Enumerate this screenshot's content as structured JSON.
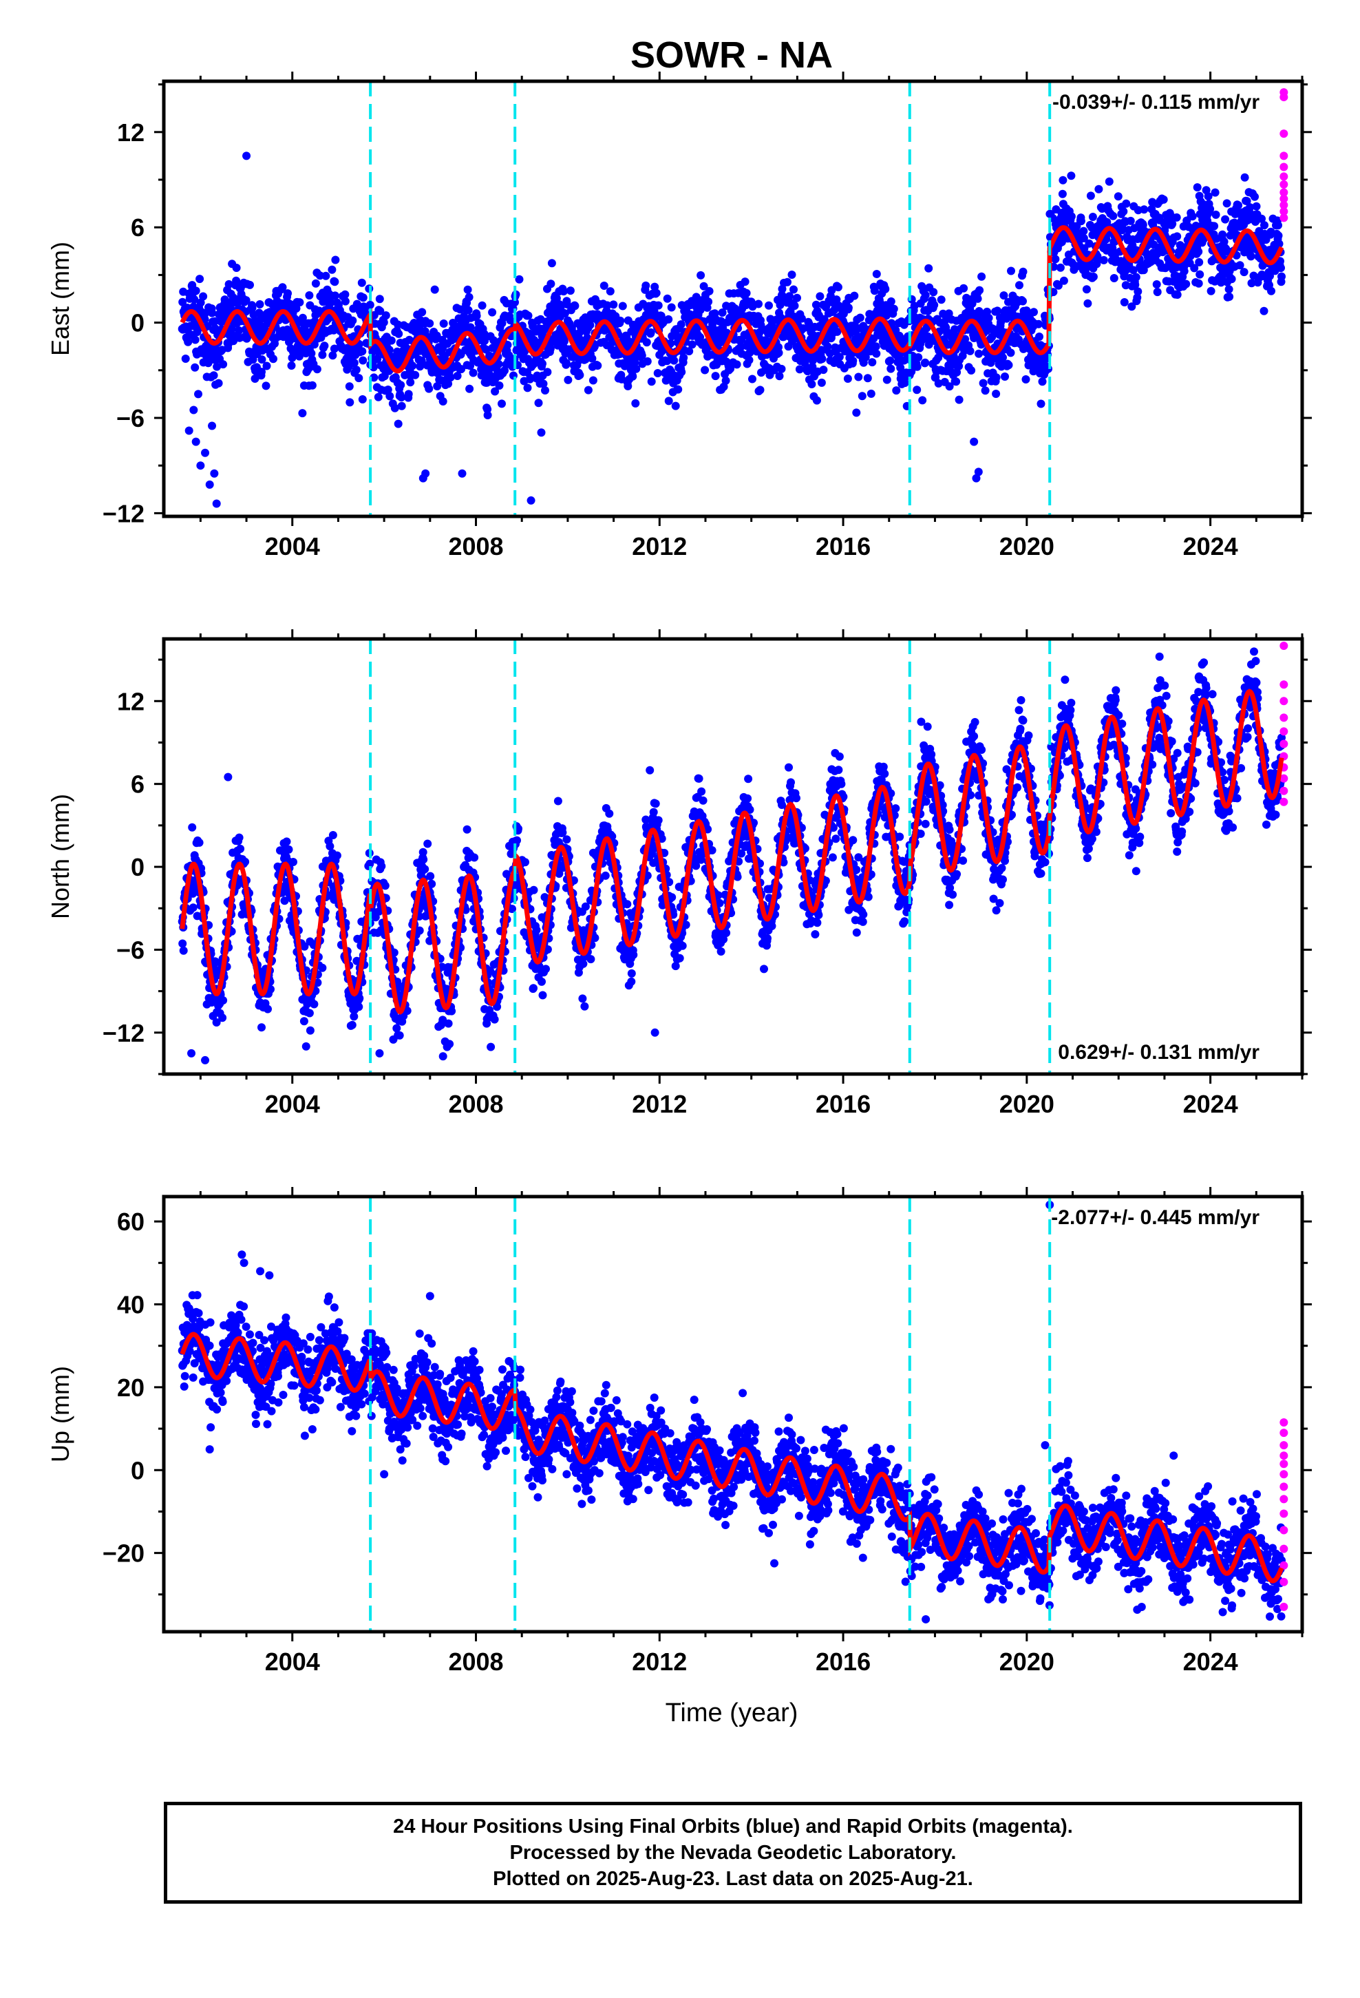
{
  "title": "SOWR - NA",
  "xlabel": "Time (year)",
  "footer": {
    "line1": "24 Hour Positions Using Final Orbits (blue) and Rapid Orbits (magenta).",
    "line2": "Processed by the Nevada Geodetic Laboratory.",
    "line3": "Plotted on 2025-Aug-23. Last data on 2025-Aug-21."
  },
  "colors": {
    "final": "#0000ff",
    "rapid": "#ff00ff",
    "model": "#ff0000",
    "events": "#00e5ee"
  },
  "chart_data": [
    {
      "type": "scatter",
      "component": "East",
      "ylabel": "East (mm)",
      "rate": "-0.039+/- 0.115 mm/yr",
      "rate_position": "top-right",
      "xlim": [
        2001.2,
        2026.0
      ],
      "ylim": [
        -12.2,
        15.2
      ],
      "xticks": [
        2004,
        2008,
        2012,
        2016,
        2020,
        2024
      ],
      "yticks": [
        -12,
        -6,
        0,
        6,
        12
      ],
      "event_lines": [
        2005.7,
        2008.85,
        2017.45,
        2020.5
      ],
      "model": {
        "start": 2001.6,
        "end": 2025.55,
        "segments": [
          {
            "from": 2001.6,
            "to": 2005.7,
            "offset": -0.3,
            "rate": 0.0,
            "amp": 1.0,
            "phase": 0.55
          },
          {
            "from": 2005.7,
            "to": 2008.85,
            "offset": -2.2,
            "rate": 0.25,
            "amp": 1.0,
            "phase": 0.55
          },
          {
            "from": 2008.85,
            "to": 2017.45,
            "offset": -1.0,
            "rate": 0.03,
            "amp": 1.0,
            "phase": 0.55
          },
          {
            "from": 2017.45,
            "to": 2020.5,
            "offset": -0.9,
            "rate": 0.0,
            "amp": 1.0,
            "phase": 0.55
          },
          {
            "from": 2020.5,
            "to": 2025.55,
            "offset": 5.0,
            "rate": -0.05,
            "amp": 1.0,
            "phase": 0.55
          }
        ]
      },
      "final_points": {
        "start": 2001.6,
        "end": 2025.55,
        "count": 3200,
        "noise": 1.3
      },
      "outliers": [
        {
          "x": 2001.9,
          "y": -7.5
        },
        {
          "x": 2002.0,
          "y": -9.0
        },
        {
          "x": 2002.1,
          "y": -8.2
        },
        {
          "x": 2001.85,
          "y": -5.5
        },
        {
          "x": 2002.2,
          "y": -10.2
        },
        {
          "x": 2002.3,
          "y": -9.5
        },
        {
          "x": 2001.75,
          "y": -6.8
        },
        {
          "x": 2002.35,
          "y": -11.4
        },
        {
          "x": 2001.95,
          "y": -4.5
        },
        {
          "x": 2002.25,
          "y": -6.5
        },
        {
          "x": 2003.0,
          "y": 10.5
        },
        {
          "x": 2006.9,
          "y": -9.5
        },
        {
          "x": 2006.85,
          "y": -9.8
        },
        {
          "x": 2007.7,
          "y": -9.5
        },
        {
          "x": 2009.2,
          "y": -11.2
        },
        {
          "x": 2018.9,
          "y": -9.8
        },
        {
          "x": 2018.85,
          "y": -7.5
        },
        {
          "x": 2018.95,
          "y": -9.4
        }
      ],
      "rapid_points": [
        {
          "x": 2025.6,
          "y": 14.5
        },
        {
          "x": 2025.6,
          "y": 14.2
        },
        {
          "x": 2025.6,
          "y": 11.9
        },
        {
          "x": 2025.6,
          "y": 10.5
        },
        {
          "x": 2025.6,
          "y": 9.8
        },
        {
          "x": 2025.6,
          "y": 9.2
        },
        {
          "x": 2025.6,
          "y": 8.7
        },
        {
          "x": 2025.6,
          "y": 8.2
        },
        {
          "x": 2025.6,
          "y": 7.8
        },
        {
          "x": 2025.6,
          "y": 7.4
        },
        {
          "x": 2025.6,
          "y": 7.0
        },
        {
          "x": 2025.6,
          "y": 6.6
        }
      ]
    },
    {
      "type": "scatter",
      "component": "North",
      "ylabel": "North (mm)",
      "rate": "0.629+/- 0.131 mm/yr",
      "rate_position": "bottom-right",
      "xlim": [
        2001.2,
        2026.0
      ],
      "ylim": [
        -15.0,
        16.5
      ],
      "xticks": [
        2004,
        2008,
        2012,
        2016,
        2020,
        2024
      ],
      "yticks": [
        -12,
        -6,
        0,
        6,
        12
      ],
      "event_lines": [
        2005.7,
        2008.85,
        2017.45,
        2020.5
      ],
      "model": {
        "start": 2001.6,
        "end": 2025.55,
        "segments": [
          {
            "from": 2001.6,
            "to": 2005.7,
            "offset": -4.5,
            "rate": 0.0,
            "amp": 4.7,
            "phase": 0.6
          },
          {
            "from": 2005.7,
            "to": 2008.85,
            "offset": -6.0,
            "rate": 0.3,
            "amp": 4.7,
            "phase": 0.6
          },
          {
            "from": 2008.85,
            "to": 2017.45,
            "offset": -3.2,
            "rate": 0.62,
            "amp": 4.0,
            "phase": 0.6
          },
          {
            "from": 2017.45,
            "to": 2020.5,
            "offset": 3.2,
            "rate": 0.62,
            "amp": 4.0,
            "phase": 0.6
          },
          {
            "from": 2020.5,
            "to": 2025.55,
            "offset": 6.0,
            "rate": 0.62,
            "amp": 4.0,
            "phase": 0.6
          }
        ]
      },
      "final_points": {
        "start": 2001.6,
        "end": 2025.55,
        "count": 3200,
        "noise": 1.3
      },
      "outliers": [
        {
          "x": 2001.8,
          "y": -13.5
        },
        {
          "x": 2002.1,
          "y": -14.0
        },
        {
          "x": 2004.3,
          "y": -13.0
        },
        {
          "x": 2005.9,
          "y": -13.5
        },
        {
          "x": 2006.2,
          "y": -12.5
        },
        {
          "x": 2011.9,
          "y": -12.0
        },
        {
          "x": 2002.6,
          "y": 6.5
        },
        {
          "x": 2017.7,
          "y": 10.5
        }
      ],
      "rapid_points": [
        {
          "x": 2025.6,
          "y": 16.0
        },
        {
          "x": 2025.6,
          "y": 13.2
        },
        {
          "x": 2025.6,
          "y": 12.0
        },
        {
          "x": 2025.6,
          "y": 10.8
        },
        {
          "x": 2025.6,
          "y": 9.8
        },
        {
          "x": 2025.6,
          "y": 8.9
        },
        {
          "x": 2025.6,
          "y": 8.0
        },
        {
          "x": 2025.6,
          "y": 7.2
        },
        {
          "x": 2025.6,
          "y": 6.4
        },
        {
          "x": 2025.6,
          "y": 5.5
        },
        {
          "x": 2025.6,
          "y": 4.7
        }
      ]
    },
    {
      "type": "scatter",
      "component": "Up",
      "ylabel": "Up (mm)",
      "rate": "-2.077+/- 0.445 mm/yr",
      "rate_position": "top-right",
      "xlim": [
        2001.2,
        2026.0
      ],
      "ylim": [
        -39.0,
        66.0
      ],
      "xticks": [
        2004,
        2008,
        2012,
        2016,
        2020,
        2024
      ],
      "yticks": [
        -20,
        0,
        20,
        40,
        60
      ],
      "event_lines": [
        2005.7,
        2008.85,
        2017.45,
        2020.5
      ],
      "model": {
        "start": 2001.6,
        "end": 2025.55,
        "segments": [
          {
            "from": 2001.6,
            "to": 2005.7,
            "offset": 28.0,
            "rate": -1.0,
            "amp": 5.0,
            "phase": 0.6
          },
          {
            "from": 2005.7,
            "to": 2008.85,
            "offset": 19.0,
            "rate": -1.5,
            "amp": 5.0,
            "phase": 0.6
          },
          {
            "from": 2008.85,
            "to": 2017.45,
            "offset": 10.0,
            "rate": -2.0,
            "amp": 5.0,
            "phase": 0.6
          },
          {
            "from": 2017.45,
            "to": 2020.5,
            "offset": -15.0,
            "rate": -1.6,
            "amp": 5.0,
            "phase": 0.6
          },
          {
            "from": 2020.5,
            "to": 2025.55,
            "offset": -13.0,
            "rate": -1.8,
            "amp": 5.0,
            "phase": 0.6
          }
        ]
      },
      "final_points": {
        "start": 2001.6,
        "end": 2025.55,
        "count": 3200,
        "noise": 4.5
      },
      "outliers": [
        {
          "x": 2002.2,
          "y": 5.0
        },
        {
          "x": 2002.9,
          "y": 52.0
        },
        {
          "x": 2003.3,
          "y": 48.0
        },
        {
          "x": 2003.5,
          "y": 47.0
        },
        {
          "x": 2007.0,
          "y": 42.0
        },
        {
          "x": 2017.8,
          "y": -36.0
        },
        {
          "x": 2020.5,
          "y": 64.0
        },
        {
          "x": 2020.4,
          "y": 6.0
        },
        {
          "x": 2023.2,
          "y": 3.5
        },
        {
          "x": 2014.5,
          "y": -22.5
        },
        {
          "x": 2006.0,
          "y": -1.0
        }
      ],
      "rapid_points": [
        {
          "x": 2025.6,
          "y": 11.5
        },
        {
          "x": 2025.6,
          "y": 9.0
        },
        {
          "x": 2025.6,
          "y": 6.0
        },
        {
          "x": 2025.6,
          "y": 3.5
        },
        {
          "x": 2025.6,
          "y": 1.5
        },
        {
          "x": 2025.6,
          "y": -1.0
        },
        {
          "x": 2025.6,
          "y": -4.0
        },
        {
          "x": 2025.6,
          "y": -7.0
        },
        {
          "x": 2025.6,
          "y": -10.5
        },
        {
          "x": 2025.6,
          "y": -14.5
        },
        {
          "x": 2025.6,
          "y": -19.0
        },
        {
          "x": 2025.6,
          "y": -23.0
        },
        {
          "x": 2025.6,
          "y": -27.0
        },
        {
          "x": 2025.6,
          "y": -33.0
        }
      ]
    }
  ]
}
